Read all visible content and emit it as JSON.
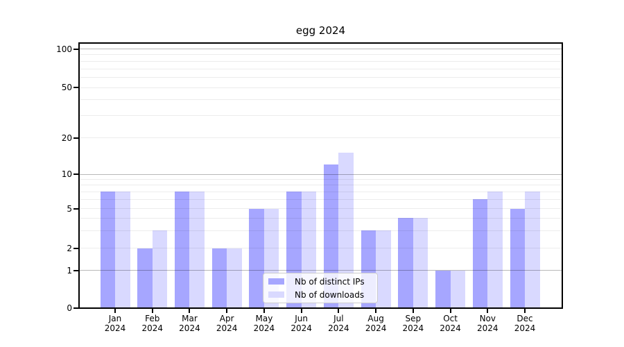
{
  "chart_data": {
    "type": "bar",
    "title": "egg 2024",
    "xlabel": "",
    "ylabel": "",
    "categories": [
      {
        "month": "Jan",
        "year": "2024"
      },
      {
        "month": "Feb",
        "year": "2024"
      },
      {
        "month": "Mar",
        "year": "2024"
      },
      {
        "month": "Apr",
        "year": "2024"
      },
      {
        "month": "May",
        "year": "2024"
      },
      {
        "month": "Jun",
        "year": "2024"
      },
      {
        "month": "Jul",
        "year": "2024"
      },
      {
        "month": "Aug",
        "year": "2024"
      },
      {
        "month": "Sep",
        "year": "2024"
      },
      {
        "month": "Oct",
        "year": "2024"
      },
      {
        "month": "Nov",
        "year": "2024"
      },
      {
        "month": "Dec",
        "year": "2024"
      }
    ],
    "series": [
      {
        "name": "Nb of distinct IPs",
        "color": "#a6a6ff",
        "values": [
          7,
          2,
          7,
          2,
          5,
          7,
          12,
          3,
          4,
          1,
          6,
          5
        ]
      },
      {
        "name": "Nb of downloads",
        "color": "#d9d9ff",
        "values": [
          7,
          3,
          7,
          2,
          5,
          7,
          15,
          3,
          4,
          1,
          7,
          7
        ]
      }
    ],
    "yticks": [
      0,
      1,
      2,
      5,
      10,
      20,
      50,
      100
    ],
    "yscale": "log-like (compressed toward 0, includes 0 baseline)",
    "ylim": [
      0,
      112
    ],
    "grid": true,
    "gridlines_emphasized": [
      1,
      10,
      100
    ],
    "legend_position": "lower-center"
  }
}
